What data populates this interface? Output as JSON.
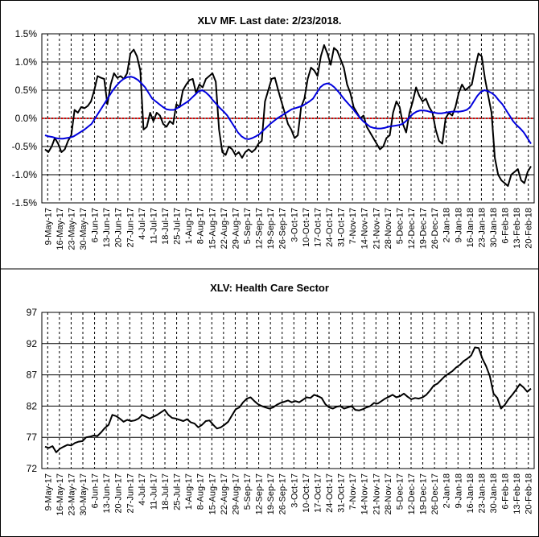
{
  "chart_data": [
    {
      "type": "line",
      "title": "XLV MF. Last date: 2/23/2018.",
      "xlabel": "",
      "ylabel": "",
      "ylim": [
        -1.5,
        1.5
      ],
      "y_ticks": [
        "1.5%",
        "1.0%",
        "0.5%",
        "0.0%",
        "-0.5%",
        "-1.0%",
        "-1.5%"
      ],
      "y_tick_values": [
        1.5,
        1.0,
        0.5,
        0.0,
        -0.5,
        -1.0,
        -1.5
      ],
      "x_ticks": [
        "9-May-17",
        "16-May-17",
        "23-May-17",
        "30-May-17",
        "6-Jun-17",
        "13-Jun-17",
        "20-Jun-17",
        "27-Jun-17",
        "4-Jul-17",
        "11-Jul-17",
        "18-Jul-17",
        "25-Jul-17",
        "1-Aug-17",
        "8-Aug-17",
        "15-Aug-17",
        "22-Aug-17",
        "29-Aug-17",
        "5-Sep-17",
        "12-Sep-17",
        "19-Sep-17",
        "26-Sep-17",
        "3-Oct-17",
        "10-Oct-17",
        "17-Oct-17",
        "24-Oct-17",
        "31-Oct-17",
        "7-Nov-17",
        "14-Nov-17",
        "21-Nov-17",
        "28-Nov-17",
        "5-Dec-17",
        "12-Dec-17",
        "19-Dec-17",
        "26-Dec-17",
        "2-Jan-18",
        "9-Jan-18",
        "16-Jan-18",
        "23-Jan-18",
        "30-Jan-18",
        "6-Feb-18",
        "13-Feb-18",
        "20-Feb-18"
      ],
      "grid": true,
      "zero_line": true,
      "colors": {
        "series_mf": "#000000",
        "series_avg": "#0000dd",
        "zero_line": "#dd0000"
      },
      "series": [
        {
          "name": "",
          "color": "#000000",
          "values": [
            -0.55,
            -0.6,
            -0.5,
            -0.35,
            -0.45,
            -0.6,
            -0.55,
            -0.4,
            -0.3,
            0.15,
            0.1,
            0.2,
            0.18,
            0.22,
            0.3,
            0.5,
            0.75,
            0.72,
            0.7,
            0.25,
            0.6,
            0.8,
            0.72,
            0.75,
            0.7,
            0.8,
            1.15,
            1.22,
            1.1,
            0.85,
            -0.2,
            -0.15,
            0.1,
            -0.05,
            0.1,
            0.05,
            -0.1,
            -0.15,
            -0.05,
            -0.1,
            0.25,
            0.2,
            0.5,
            0.6,
            0.68,
            0.7,
            0.45,
            0.6,
            0.55,
            0.7,
            0.75,
            0.8,
            0.65,
            -0.2,
            -0.6,
            -0.65,
            -0.5,
            -0.55,
            -0.65,
            -0.6,
            -0.7,
            -0.6,
            -0.55,
            -0.6,
            -0.55,
            -0.45,
            -0.4,
            0.3,
            0.5,
            0.7,
            0.72,
            0.5,
            0.3,
            0.1,
            -0.1,
            -0.2,
            -0.35,
            -0.3,
            0.2,
            0.35,
            0.7,
            0.9,
            0.85,
            0.75,
            1.1,
            1.3,
            1.15,
            0.95,
            1.25,
            1.2,
            1.05,
            0.9,
            0.6,
            0.45,
            0.2,
            0.1,
            0.0,
            0.05,
            -0.15,
            -0.25,
            -0.35,
            -0.45,
            -0.55,
            -0.5,
            -0.35,
            -0.3,
            0.1,
            0.3,
            0.2,
            -0.1,
            -0.25,
            0.1,
            0.3,
            0.55,
            0.4,
            0.3,
            0.35,
            0.2,
            0.1,
            -0.2,
            -0.4,
            -0.45,
            0.0,
            0.1,
            0.05,
            0.2,
            0.45,
            0.6,
            0.5,
            0.55,
            0.6,
            0.9,
            1.15,
            1.1,
            0.7,
            0.4,
            0.1,
            -0.7,
            -1.0,
            -1.1,
            -1.15,
            -1.2,
            -1.0,
            -0.95,
            -0.9,
            -1.1,
            -1.15,
            -0.95,
            -0.85
          ]
        },
        {
          "name": "",
          "color": "#0000dd",
          "values": [
            -0.3,
            -0.32,
            -0.33,
            -0.35,
            -0.36,
            -0.36,
            -0.35,
            -0.34,
            -0.32,
            -0.28,
            -0.24,
            -0.2,
            -0.15,
            -0.1,
            0.0,
            0.1,
            0.2,
            0.3,
            0.4,
            0.5,
            0.58,
            0.65,
            0.7,
            0.73,
            0.74,
            0.72,
            0.68,
            0.62,
            0.55,
            0.45,
            0.35,
            0.3,
            0.25,
            0.2,
            0.16,
            0.15,
            0.15,
            0.18,
            0.22,
            0.26,
            0.3,
            0.36,
            0.42,
            0.48,
            0.5,
            0.46,
            0.4,
            0.32,
            0.25,
            0.18,
            0.12,
            0.05,
            -0.05,
            -0.15,
            -0.25,
            -0.32,
            -0.36,
            -0.37,
            -0.35,
            -0.32,
            -0.28,
            -0.22,
            -0.16,
            -0.1,
            -0.05,
            0.0,
            0.04,
            0.08,
            0.12,
            0.16,
            0.18,
            0.2,
            0.22,
            0.26,
            0.3,
            0.35,
            0.45,
            0.55,
            0.6,
            0.62,
            0.6,
            0.55,
            0.48,
            0.4,
            0.32,
            0.25,
            0.18,
            0.1,
            0.02,
            -0.05,
            -0.1,
            -0.15,
            -0.17,
            -0.18,
            -0.18,
            -0.17,
            -0.15,
            -0.14,
            -0.13,
            -0.12,
            -0.1,
            -0.05,
            0.02,
            0.08,
            0.12,
            0.14,
            0.14,
            0.13,
            0.11,
            0.1,
            0.09,
            0.09,
            0.1,
            0.11,
            0.12,
            0.12,
            0.12,
            0.13,
            0.15,
            0.2,
            0.3,
            0.4,
            0.47,
            0.5,
            0.48,
            0.45,
            0.4,
            0.32,
            0.25,
            0.15,
            0.05,
            -0.05,
            -0.12,
            -0.18,
            -0.25,
            -0.35,
            -0.45
          ]
        }
      ]
    },
    {
      "type": "line",
      "title": "XLV: Health Care Sector",
      "xlabel": "",
      "ylabel": "",
      "ylim": [
        72,
        97
      ],
      "y_ticks": [
        "97",
        "92",
        "87",
        "82",
        "77",
        "72"
      ],
      "y_tick_values": [
        97,
        92,
        87,
        82,
        77,
        72
      ],
      "x_ticks": [
        "9-May-17",
        "16-May-17",
        "23-May-17",
        "30-May-17",
        "6-Jun-17",
        "13-Jun-17",
        "20-Jun-17",
        "27-Jun-17",
        "4-Jul-17",
        "11-Jul-17",
        "18-Jul-17",
        "25-Jul-17",
        "1-Aug-17",
        "8-Aug-17",
        "15-Aug-17",
        "22-Aug-17",
        "29-Aug-17",
        "5-Sep-17",
        "12-Sep-17",
        "19-Sep-17",
        "26-Sep-17",
        "3-Oct-17",
        "10-Oct-17",
        "17-Oct-17",
        "24-Oct-17",
        "31-Oct-17",
        "7-Nov-17",
        "14-Nov-17",
        "21-Nov-17",
        "28-Nov-17",
        "5-Dec-17",
        "12-Dec-17",
        "19-Dec-17",
        "26-Dec-17",
        "2-Jan-18",
        "9-Jan-18",
        "16-Jan-18",
        "23-Jan-18",
        "30-Jan-18",
        "6-Feb-18",
        "13-Feb-18",
        "20-Feb-18"
      ],
      "grid": true,
      "series": [
        {
          "name": "",
          "color": "#000000",
          "values": [
            75.5,
            75.3,
            75.6,
            74.6,
            75.2,
            75.5,
            75.8,
            75.7,
            76.1,
            76.3,
            76.4,
            77.0,
            77.1,
            77.3,
            77.2,
            77.8,
            78.5,
            79.0,
            80.6,
            80.4,
            80.0,
            79.5,
            79.8,
            79.6,
            79.7,
            80.0,
            80.6,
            80.3,
            80.0,
            80.3,
            80.6,
            81.0,
            81.4,
            80.6,
            80.1,
            80.0,
            79.8,
            79.6,
            79.9,
            79.4,
            79.2,
            78.6,
            79.0,
            79.6,
            79.7,
            79.0,
            78.4,
            78.6,
            79.0,
            79.5,
            80.5,
            81.5,
            81.8,
            82.6,
            83.2,
            83.4,
            82.8,
            82.3,
            82.0,
            81.8,
            81.6,
            81.8,
            82.2,
            82.5,
            82.7,
            82.9,
            82.6,
            82.8,
            82.6,
            83.0,
            83.4,
            83.3,
            83.8,
            83.6,
            83.3,
            82.3,
            81.8,
            81.6,
            81.9,
            82.0,
            81.6,
            81.8,
            82.0,
            81.4,
            81.3,
            81.5,
            81.8,
            82.0,
            82.5,
            82.4,
            82.8,
            83.2,
            83.5,
            83.8,
            83.4,
            83.6,
            84.0,
            83.5,
            83.1,
            83.3,
            83.2,
            83.4,
            83.8,
            84.5,
            85.3,
            85.6,
            86.2,
            86.8,
            87.2,
            87.6,
            88.2,
            88.6,
            89.2,
            89.6,
            90.1,
            91.4,
            91.3,
            89.6,
            88.4,
            86.8,
            84.0,
            83.3,
            81.6,
            82.2,
            83.1,
            83.8,
            84.6,
            85.5,
            85.0,
            84.3,
            84.8
          ]
        }
      ]
    }
  ]
}
